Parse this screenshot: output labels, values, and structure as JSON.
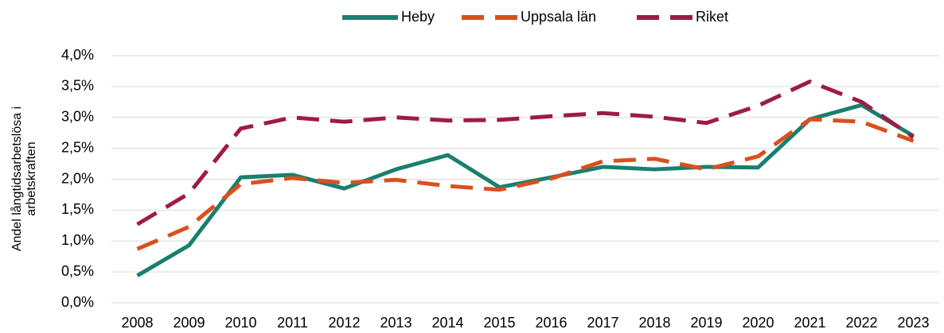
{
  "chart_data": {
    "type": "line",
    "y_label": [
      "Andel långtidsarbetslösa i",
      "arbetskraften"
    ],
    "categories": [
      "2008",
      "2009",
      "2010",
      "2011",
      "2012",
      "2013",
      "2014",
      "2015",
      "2016",
      "2017",
      "2018",
      "2019",
      "2020",
      "2021",
      "2022",
      "2023"
    ],
    "series": [
      {
        "name": "Heby",
        "color": "#1a7f6e",
        "dashed": false,
        "values": [
          0.44,
          0.93,
          2.03,
          2.07,
          1.85,
          2.16,
          2.39,
          1.87,
          2.03,
          2.2,
          2.16,
          2.2,
          2.19,
          2.97,
          3.2,
          2.7
        ]
      },
      {
        "name": "Uppsala län",
        "color": "#d9501e",
        "dashed": true,
        "values": [
          0.87,
          1.23,
          1.92,
          2.02,
          1.94,
          1.99,
          1.89,
          1.83,
          2.01,
          2.29,
          2.33,
          2.16,
          2.37,
          2.97,
          2.93,
          2.62
        ]
      },
      {
        "name": "Riket",
        "color": "#9e1b47",
        "dashed": true,
        "values": [
          1.27,
          1.77,
          2.82,
          3.0,
          2.93,
          3.0,
          2.95,
          2.96,
          3.02,
          3.07,
          3.01,
          2.91,
          3.19,
          3.58,
          3.25,
          2.68
        ]
      }
    ],
    "ylim": [
      0,
      4
    ],
    "yticks": [
      {
        "value": 0,
        "label": "0,0%"
      },
      {
        "value": 0.5,
        "label": "0,5%"
      },
      {
        "value": 1,
        "label": "1,0%"
      },
      {
        "value": 1.5,
        "label": "1,5%"
      },
      {
        "value": 2,
        "label": "2,0%"
      },
      {
        "value": 2.5,
        "label": "2,5%"
      },
      {
        "value": 3,
        "label": "3,0%"
      },
      {
        "value": 3.5,
        "label": "3,5%"
      },
      {
        "value": 4,
        "label": "4,0%"
      }
    ],
    "grid": true,
    "legend": "top"
  }
}
